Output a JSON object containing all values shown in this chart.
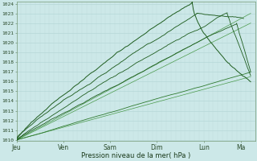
{
  "xlabel": "Pression niveau de la mer( hPa )",
  "ylim": [
    1010,
    1024
  ],
  "yticks": [
    1010,
    1011,
    1012,
    1013,
    1014,
    1015,
    1016,
    1017,
    1018,
    1019,
    1020,
    1021,
    1022,
    1023,
    1024
  ],
  "xtick_labels": [
    "Jeu",
    "Ven",
    "Sam",
    "Dim",
    "Lun",
    "Ma"
  ],
  "xtick_pos": [
    0,
    1,
    2,
    3,
    4,
    4.8
  ],
  "xlim": [
    0,
    5.1
  ],
  "bg_color": "#cce8e8",
  "grid_color_h": "#b0d4d4",
  "grid_color_v": "#c0dcdc",
  "dark_green": "#1d5c1d",
  "mid_green": "#2e7a2e",
  "light_green": "#4a9a4a"
}
